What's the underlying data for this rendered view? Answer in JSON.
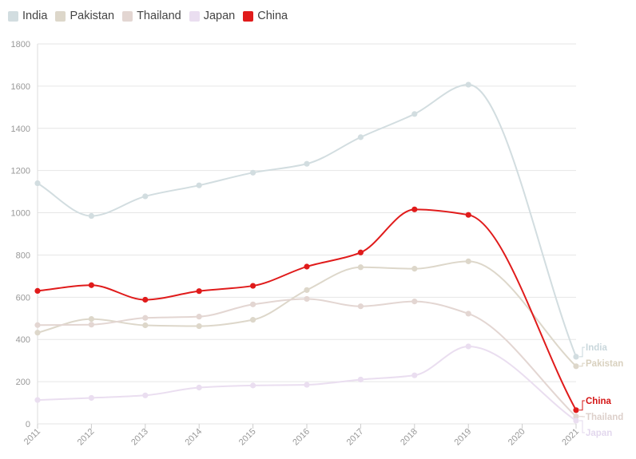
{
  "chart_data": {
    "type": "line",
    "x": [
      "2011",
      "2012",
      "2013",
      "2014",
      "2015",
      "2016",
      "2017",
      "2018",
      "2019",
      "2020",
      "2021"
    ],
    "ylim": [
      0,
      1800
    ],
    "yticks": [
      0,
      200,
      400,
      600,
      800,
      1000,
      1200,
      1400,
      1600,
      1800
    ],
    "grid": true,
    "legend_position": "top-left",
    "series": [
      {
        "name": "India",
        "color": "#d2dde0",
        "label_color": "#c9d7dc",
        "values": [
          1140,
          985,
          1078,
          1130,
          1190,
          1232,
          1358,
          1468,
          1607,
          null,
          318
        ]
      },
      {
        "name": "Pakistan",
        "color": "#ddd7ca",
        "label_color": "#d9d1bf",
        "values": [
          432,
          497,
          467,
          463,
          493,
          634,
          742,
          735,
          770,
          null,
          273
        ]
      },
      {
        "name": "Thailand",
        "color": "#e3d6d2",
        "label_color": "#ddd0cb",
        "values": [
          468,
          470,
          502,
          508,
          566,
          592,
          557,
          580,
          522,
          null,
          35
        ]
      },
      {
        "name": "Japan",
        "color": "#eadef0",
        "label_color": "#e3d8ee",
        "values": [
          113,
          123,
          135,
          172,
          182,
          185,
          210,
          230,
          367,
          null,
          15
        ]
      },
      {
        "name": "China",
        "color": "#e01b1b",
        "label_color": "#d41515",
        "values": [
          630,
          657,
          588,
          629,
          654,
          745,
          812,
          1016,
          990,
          null,
          65
        ]
      }
    ]
  }
}
